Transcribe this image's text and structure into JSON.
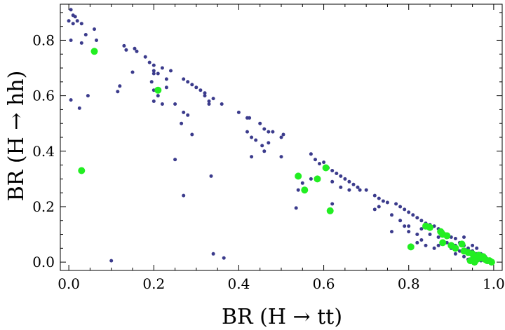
{
  "chart_data": {
    "type": "scatter",
    "xlabel": "BR (H → tt)",
    "ylabel": "BR (H → hh)",
    "xlim": [
      -0.02,
      1.02
    ],
    "ylim": [
      -0.03,
      0.93
    ],
    "x_ticks": [
      "0.0",
      "0.2",
      "0.4",
      "0.6",
      "0.8",
      "1.0"
    ],
    "y_ticks": [
      "0.0",
      "0.2",
      "0.4",
      "0.6",
      "0.8"
    ],
    "grid": false,
    "colors": {
      "navy": "#3b3b8c",
      "green": "#22ee22"
    },
    "series": [
      {
        "color": "navy",
        "points": [
          [
            0.005,
            0.91
          ],
          [
            0.01,
            0.89
          ],
          [
            0.015,
            0.885
          ],
          [
            0.0,
            0.87
          ],
          [
            0.01,
            0.86
          ],
          [
            0.02,
            0.87
          ],
          [
            0.03,
            0.86
          ],
          [
            0.005,
            0.8
          ],
          [
            0.04,
            0.82
          ],
          [
            0.06,
            0.84
          ],
          [
            0.065,
            0.8
          ],
          [
            0.03,
            0.79
          ],
          [
            0.005,
            0.585
          ],
          [
            0.025,
            0.555
          ],
          [
            0.045,
            0.6
          ],
          [
            0.12,
            0.635
          ],
          [
            0.115,
            0.615
          ],
          [
            0.13,
            0.78
          ],
          [
            0.135,
            0.765
          ],
          [
            0.155,
            0.77
          ],
          [
            0.16,
            0.76
          ],
          [
            0.18,
            0.74
          ],
          [
            0.19,
            0.72
          ],
          [
            0.2,
            0.71
          ],
          [
            0.22,
            0.7
          ],
          [
            0.24,
            0.69
          ],
          [
            0.21,
            0.68
          ],
          [
            0.23,
            0.66
          ],
          [
            0.195,
            0.65
          ],
          [
            0.2,
            0.62
          ],
          [
            0.21,
            0.6
          ],
          [
            0.2,
            0.58
          ],
          [
            0.22,
            0.57
          ],
          [
            0.25,
            0.57
          ],
          [
            0.23,
            0.63
          ],
          [
            0.2,
            0.69
          ],
          [
            0.2,
            0.68
          ],
          [
            0.15,
            0.685
          ],
          [
            0.27,
            0.66
          ],
          [
            0.28,
            0.65
          ],
          [
            0.29,
            0.64
          ],
          [
            0.3,
            0.63
          ],
          [
            0.31,
            0.62
          ],
          [
            0.32,
            0.6
          ],
          [
            0.34,
            0.59
          ],
          [
            0.33,
            0.58
          ],
          [
            0.36,
            0.57
          ],
          [
            0.32,
            0.61
          ],
          [
            0.27,
            0.54
          ],
          [
            0.28,
            0.53
          ],
          [
            0.265,
            0.5
          ],
          [
            0.29,
            0.46
          ],
          [
            0.25,
            0.37
          ],
          [
            0.27,
            0.24
          ],
          [
            0.33,
            0.57
          ],
          [
            0.4,
            0.54
          ],
          [
            0.42,
            0.52
          ],
          [
            0.425,
            0.52
          ],
          [
            0.45,
            0.5
          ],
          [
            0.46,
            0.48
          ],
          [
            0.47,
            0.47
          ],
          [
            0.48,
            0.47
          ],
          [
            0.5,
            0.45
          ],
          [
            0.505,
            0.46
          ],
          [
            0.42,
            0.47
          ],
          [
            0.43,
            0.45
          ],
          [
            0.44,
            0.44
          ],
          [
            0.455,
            0.42
          ],
          [
            0.46,
            0.4
          ],
          [
            0.47,
            0.43
          ],
          [
            0.5,
            0.38
          ],
          [
            0.43,
            0.38
          ],
          [
            0.57,
            0.39
          ],
          [
            0.58,
            0.37
          ],
          [
            0.59,
            0.355
          ],
          [
            0.6,
            0.36
          ],
          [
            0.61,
            0.34
          ],
          [
            0.62,
            0.33
          ],
          [
            0.63,
            0.32
          ],
          [
            0.64,
            0.31
          ],
          [
            0.65,
            0.3
          ],
          [
            0.66,
            0.29
          ],
          [
            0.67,
            0.28
          ],
          [
            0.68,
            0.27
          ],
          [
            0.685,
            0.26
          ],
          [
            0.72,
            0.24
          ],
          [
            0.73,
            0.23
          ],
          [
            0.74,
            0.22
          ],
          [
            0.75,
            0.215
          ],
          [
            0.77,
            0.21
          ],
          [
            0.78,
            0.2
          ],
          [
            0.79,
            0.19
          ],
          [
            0.8,
            0.18
          ],
          [
            0.81,
            0.17
          ],
          [
            0.82,
            0.16
          ],
          [
            0.83,
            0.15
          ],
          [
            0.84,
            0.14
          ],
          [
            0.85,
            0.135
          ],
          [
            0.86,
            0.13
          ],
          [
            0.87,
            0.12
          ],
          [
            0.88,
            0.11
          ],
          [
            0.89,
            0.1
          ],
          [
            0.9,
            0.09
          ],
          [
            0.91,
            0.085
          ],
          [
            0.92,
            0.07
          ],
          [
            0.93,
            0.06
          ],
          [
            0.94,
            0.05
          ],
          [
            0.95,
            0.04
          ],
          [
            0.96,
            0.03
          ],
          [
            0.97,
            0.02
          ],
          [
            0.98,
            0.01
          ],
          [
            0.99,
            0.005
          ],
          [
            0.62,
            0.29
          ],
          [
            0.64,
            0.27
          ],
          [
            0.66,
            0.26
          ],
          [
            0.7,
            0.26
          ],
          [
            0.73,
            0.2
          ],
          [
            0.76,
            0.17
          ],
          [
            0.78,
            0.15
          ],
          [
            0.79,
            0.13
          ],
          [
            0.76,
            0.11
          ],
          [
            0.8,
            0.11
          ],
          [
            0.82,
            0.1
          ],
          [
            0.83,
            0.08
          ],
          [
            0.82,
            0.07
          ],
          [
            0.84,
            0.06
          ],
          [
            0.86,
            0.05
          ],
          [
            0.87,
            0.06
          ],
          [
            0.88,
            0.065
          ],
          [
            0.89,
            0.07
          ],
          [
            0.91,
            0.03
          ],
          [
            0.92,
            0.04
          ],
          [
            0.93,
            0.02
          ],
          [
            0.94,
            0.035
          ],
          [
            0.95,
            0.02
          ],
          [
            0.96,
            0.01
          ],
          [
            0.93,
            0.09
          ],
          [
            0.95,
            0.06
          ],
          [
            0.96,
            0.05
          ],
          [
            0.97,
            0.03
          ],
          [
            0.98,
            0.02
          ],
          [
            0.62,
            0.21
          ],
          [
            0.535,
            0.195
          ],
          [
            0.54,
            0.26
          ],
          [
            0.55,
            0.285
          ],
          [
            0.57,
            0.3
          ],
          [
            0.72,
            0.19
          ],
          [
            0.8,
            0.13
          ],
          [
            0.83,
            0.12
          ],
          [
            0.85,
            0.1
          ],
          [
            0.87,
            0.09
          ],
          [
            0.9,
            0.05
          ],
          [
            0.91,
            0.06
          ],
          [
            0.94,
            0.01
          ],
          [
            0.95,
            0.015
          ],
          [
            0.97,
            0.005
          ],
          [
            0.98,
            0.015
          ],
          [
            0.1,
            0.005
          ],
          [
            0.34,
            0.03
          ],
          [
            0.365,
            0.015
          ],
          [
            0.335,
            0.31
          ]
        ]
      },
      {
        "color": "green",
        "points": [
          [
            0.06,
            0.76
          ],
          [
            0.21,
            0.62
          ],
          [
            0.03,
            0.33
          ],
          [
            0.54,
            0.31
          ],
          [
            0.555,
            0.26
          ],
          [
            0.585,
            0.3
          ],
          [
            0.605,
            0.34
          ],
          [
            0.615,
            0.185
          ],
          [
            0.805,
            0.055
          ],
          [
            0.84,
            0.13
          ],
          [
            0.85,
            0.125
          ],
          [
            0.875,
            0.11
          ],
          [
            0.88,
            0.1
          ],
          [
            0.89,
            0.095
          ],
          [
            0.88,
            0.07
          ],
          [
            0.9,
            0.06
          ],
          [
            0.91,
            0.05
          ],
          [
            0.925,
            0.065
          ],
          [
            0.93,
            0.04
          ],
          [
            0.94,
            0.035
          ],
          [
            0.95,
            0.03
          ],
          [
            0.955,
            0.02
          ],
          [
            0.96,
            0.01
          ],
          [
            0.965,
            0.025
          ],
          [
            0.97,
            0.015
          ],
          [
            0.975,
            0.02
          ],
          [
            0.98,
            0.01
          ],
          [
            0.985,
            0.005
          ],
          [
            0.99,
            0.005
          ],
          [
            0.995,
            0.0
          ],
          [
            0.955,
            0.0
          ],
          [
            0.945,
            0.005
          ]
        ]
      }
    ]
  }
}
